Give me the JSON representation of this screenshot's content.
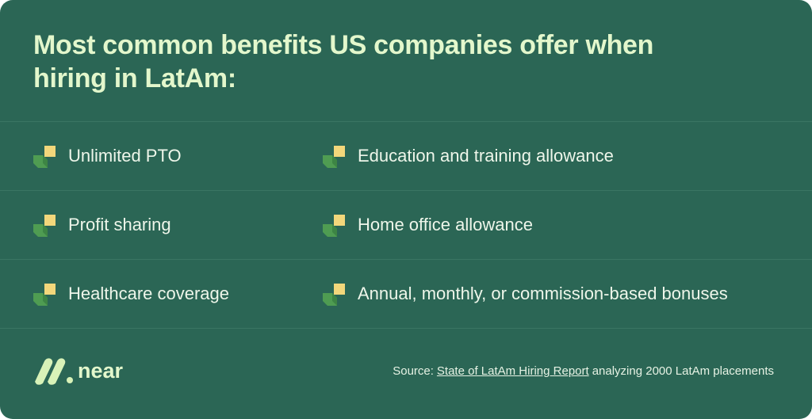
{
  "header": {
    "title": "Most common benefits US companies offer when hiring in LatAm:"
  },
  "benefits": [
    [
      "Unlimited PTO",
      "Education and training allowance"
    ],
    [
      "Profit sharing",
      "Home office allowance"
    ],
    [
      "Healthcare coverage",
      "Annual, monthly, or commission-based bonuses"
    ]
  ],
  "footer": {
    "logo": "near",
    "source": {
      "prefix": "Source:",
      "link": "State of LatAm Hiring Report",
      "suffix": "analyzing 2000 LatAm placements"
    }
  }
}
